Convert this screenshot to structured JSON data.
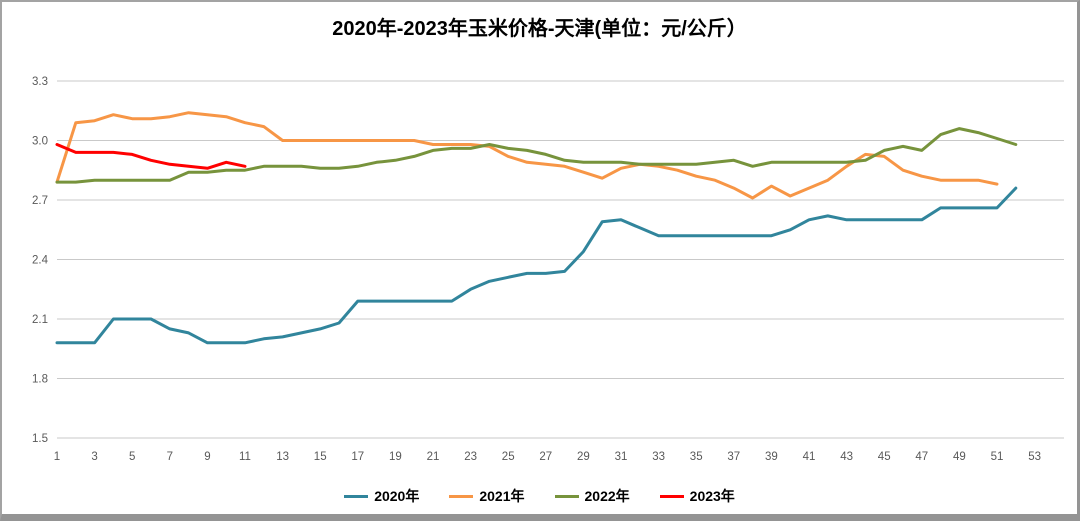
{
  "title": "2020年-2023年玉米价格-天津(单位：元/公斤）",
  "chart_data": {
    "type": "line",
    "title": "2020年-2023年玉米价格-天津(单位：元/公斤）",
    "unit": "元/公斤",
    "xlabel": "",
    "ylabel": "",
    "grid": "horizontal-only",
    "legend_position": "bottom",
    "x_axis": {
      "min": 1,
      "max": 53,
      "ticks": [
        1,
        3,
        5,
        7,
        9,
        11,
        13,
        15,
        17,
        19,
        21,
        23,
        25,
        27,
        29,
        31,
        33,
        35,
        37,
        39,
        41,
        43,
        45,
        47,
        49,
        51,
        53
      ]
    },
    "y_axis": {
      "min": 1.5,
      "max": 3.3,
      "step": 0.3,
      "ticks": [
        1.5,
        1.8,
        2.1,
        2.4,
        2.7,
        3.0,
        3.3
      ]
    },
    "axis_text_color": "#595959",
    "gridline_color": "#c9c9c9",
    "series": [
      {
        "name": "2020年",
        "color": "#31859C",
        "start_week": 1,
        "values": [
          1.98,
          1.98,
          1.98,
          2.1,
          2.1,
          2.1,
          2.05,
          2.03,
          1.98,
          1.98,
          1.98,
          2.0,
          2.01,
          2.03,
          2.05,
          2.08,
          2.19,
          2.19,
          2.19,
          2.19,
          2.19,
          2.19,
          2.25,
          2.29,
          2.31,
          2.33,
          2.33,
          2.34,
          2.44,
          2.59,
          2.6,
          2.56,
          2.52,
          2.52,
          2.52,
          2.52,
          2.52,
          2.52,
          2.52,
          2.55,
          2.6,
          2.62,
          2.6,
          2.6,
          2.6,
          2.6,
          2.6,
          2.66,
          2.66,
          2.66,
          2.66,
          2.76
        ]
      },
      {
        "name": "2021年",
        "color": "#F79646",
        "start_week": 1,
        "values": [
          2.79,
          3.09,
          3.1,
          3.13,
          3.11,
          3.11,
          3.12,
          3.14,
          3.13,
          3.12,
          3.09,
          3.07,
          3.0,
          3.0,
          3.0,
          3.0,
          3.0,
          3.0,
          3.0,
          3.0,
          2.98,
          2.98,
          2.98,
          2.97,
          2.92,
          2.89,
          2.88,
          2.87,
          2.84,
          2.81,
          2.86,
          2.88,
          2.87,
          2.85,
          2.82,
          2.8,
          2.76,
          2.71,
          2.77,
          2.72,
          2.76,
          2.8,
          2.87,
          2.93,
          2.92,
          2.85,
          2.82,
          2.8,
          2.8,
          2.8,
          2.78
        ]
      },
      {
        "name": "2022年",
        "color": "#77933C",
        "start_week": 1,
        "values": [
          2.79,
          2.79,
          2.8,
          2.8,
          2.8,
          2.8,
          2.8,
          2.84,
          2.84,
          2.85,
          2.85,
          2.87,
          2.87,
          2.87,
          2.86,
          2.86,
          2.87,
          2.89,
          2.9,
          2.92,
          2.95,
          2.96,
          2.96,
          2.98,
          2.96,
          2.95,
          2.93,
          2.9,
          2.89,
          2.89,
          2.89,
          2.88,
          2.88,
          2.88,
          2.88,
          2.89,
          2.9,
          2.87,
          2.89,
          2.89,
          2.89,
          2.89,
          2.89,
          2.9,
          2.95,
          2.97,
          2.95,
          3.03,
          3.06,
          3.04,
          3.01,
          2.98
        ]
      },
      {
        "name": "2023年",
        "color": "#FF0000",
        "start_week": 1,
        "values": [
          2.98,
          2.94,
          2.94,
          2.94,
          2.93,
          2.9,
          2.88,
          2.87,
          2.86,
          2.89,
          2.87
        ]
      }
    ]
  }
}
